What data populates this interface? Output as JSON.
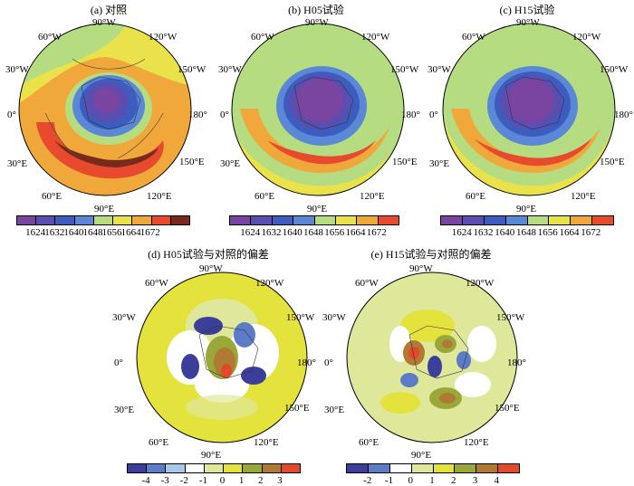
{
  "panels": [
    {
      "id": "a",
      "title": "(a) 对照",
      "labels": {
        "w60": "60°W",
        "w90": "90°W",
        "w120": "120°W",
        "w30": "30°W",
        "w150": "150°W",
        "lon0": "0°",
        "lon180": "180°",
        "e30": "30°E",
        "e150": "150°E",
        "e60": "60°E",
        "e120": "120°E",
        "e90": "90°E"
      }
    },
    {
      "id": "b",
      "title": "(b) H05试验",
      "labels": {
        "w60": "60°W",
        "w90": "90°W",
        "w120": "120°W",
        "w30": "30°W",
        "w150": "150°W",
        "lon0": "0°",
        "lon180": "180°",
        "e30": "30°E",
        "e150": "150°E",
        "e60": "60°E",
        "e120": "120°E",
        "e90": "90°E"
      }
    },
    {
      "id": "c",
      "title": "(c) H15试验",
      "labels": {
        "w60": "60°W",
        "w90": "90°W",
        "w120": "120°W",
        "w30": "30°W",
        "w150": "150°W",
        "lon0": "0°",
        "lon180": "180°",
        "e30": "30°E",
        "e150": "150°E",
        "e60": "60°E",
        "e120": "120°E",
        "e90": "90°E"
      }
    },
    {
      "id": "d",
      "title": "(d) H05试验与对照的偏差",
      "labels": {
        "w60": "60°W",
        "w90": "90°W",
        "w120": "120°W",
        "w30": "30°W",
        "w150": "150°W",
        "lon0": "0°",
        "lon180": "180°",
        "e30": "30°E",
        "e150": "150°E",
        "e60": "60°E",
        "e120": "120°E",
        "e90": "90°E"
      }
    },
    {
      "id": "e",
      "title": "(e) H15试验与对照的偏差",
      "labels": {
        "w60": "60°W",
        "w90": "90°W",
        "w120": "120°W",
        "w30": "30°W",
        "w150": "150°W",
        "lon0": "0°",
        "lon180": "180°",
        "e30": "30°E",
        "e150": "150°E",
        "e60": "60°E",
        "e120": "120°E",
        "e90": "90°E"
      }
    }
  ],
  "colorbars": {
    "height": {
      "colors": [
        "#7a45a0",
        "#5a4fb0",
        "#3d5cc0",
        "#5a87d6",
        "#b6dc82",
        "#e9e24a",
        "#f0a83a",
        "#e84a2e",
        "#7a2a1c"
      ],
      "ticks": [
        "1624",
        "1632",
        "1640",
        "1648",
        "1656",
        "1664",
        "1672"
      ]
    },
    "height_bc": {
      "colors": [
        "#7a45a0",
        "#5a4fb0",
        "#3d5cc0",
        "#5a87d6",
        "#b6dc82",
        "#e9e24a",
        "#f0a83a",
        "#e84a2e"
      ],
      "ticks": [
        "1624",
        "1632",
        "1640",
        "1648",
        "1656",
        "1664",
        "1672"
      ]
    },
    "diff_d": {
      "colors": [
        "#3b3f9a",
        "#5d7cc8",
        "#a8c8e8",
        "#ffffff",
        "#dfe89a",
        "#e4e23c",
        "#9aa83a",
        "#b07a34",
        "#e04a2a"
      ],
      "ticks": [
        "-4",
        "-3",
        "-2",
        "-1",
        "0",
        "1",
        "2",
        "3"
      ]
    },
    "diff_e": {
      "colors": [
        "#3b3f9a",
        "#5d7cc8",
        "#ffffff",
        "#dfe89a",
        "#e4e23c",
        "#9aa83a",
        "#b07a34",
        "#e04a2a"
      ],
      "ticks": [
        "-2",
        "-1",
        "0",
        "1",
        "2",
        "3",
        "4"
      ]
    }
  }
}
